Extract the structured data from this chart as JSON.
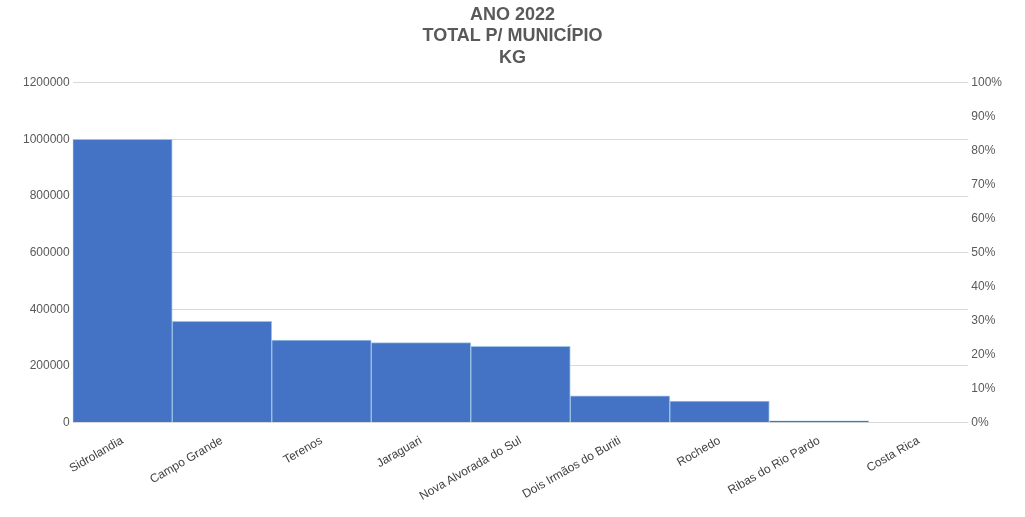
{
  "chart_data": {
    "type": "bar",
    "title": "ANO 2022\nTOTAL P/ MUNICÍPIO\nKG",
    "categories": [
      "Sidrolandia",
      "Campo Grande",
      "Terenos",
      "Jaraguari",
      "Nova Alvorada do Sul",
      "Dois Irmãos do Buriti",
      "Rochedo",
      "Ribas do Rio Pardo",
      "Costa Rica"
    ],
    "values": [
      1000000,
      357000,
      291000,
      282000,
      269000,
      94000,
      76000,
      6000,
      0
    ],
    "color": "#4472c4",
    "ylim": [
      0,
      1200000
    ],
    "yticks": [
      0,
      200000,
      400000,
      600000,
      800000,
      1000000,
      1200000
    ],
    "y2lim": [
      0,
      100
    ],
    "y2ticks": [
      {
        "value": 0,
        "label": "0%"
      },
      {
        "value": 10,
        "label": "10%"
      },
      {
        "value": 20,
        "label": "20%"
      },
      {
        "value": 30,
        "label": "30%"
      },
      {
        "value": 40,
        "label": "40%"
      },
      {
        "value": 50,
        "label": "50%"
      },
      {
        "value": 60,
        "label": "60%"
      },
      {
        "value": 70,
        "label": "70%"
      },
      {
        "value": 80,
        "label": "80%"
      },
      {
        "value": 90,
        "label": "90%"
      },
      {
        "value": 100,
        "label": "100%"
      }
    ],
    "grid": "y",
    "legend": false
  }
}
